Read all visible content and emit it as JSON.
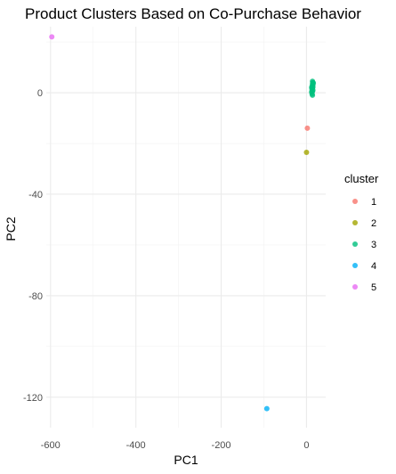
{
  "chart_data": {
    "type": "scatter",
    "title": "Product Clusters Based on Co-Purchase Behavior",
    "xlabel": "PC1",
    "ylabel": "PC2",
    "xlim": [
      -610,
      45
    ],
    "ylim": [
      -132,
      26
    ],
    "x_ticks": [
      -600,
      -400,
      -200,
      0
    ],
    "y_ticks": [
      0,
      -40,
      -80,
      -120
    ],
    "grid": true,
    "legend": {
      "title": "cluster",
      "position": "right"
    },
    "series": [
      {
        "name": "1",
        "color": "#F8766D",
        "points": [
          [
            2,
            -14
          ]
        ]
      },
      {
        "name": "2",
        "color": "#A3A500",
        "points": [
          [
            0,
            -23.5
          ]
        ]
      },
      {
        "name": "3",
        "color": "#00BF7D",
        "points": [
          [
            14,
            4.5
          ],
          [
            15,
            4
          ],
          [
            14,
            3.5
          ],
          [
            15,
            3
          ],
          [
            13,
            2.5
          ],
          [
            15,
            2.2
          ],
          [
            14,
            1.8
          ],
          [
            13,
            1.2
          ],
          [
            15,
            1
          ],
          [
            14,
            0.5
          ],
          [
            12,
            0.3
          ],
          [
            13,
            -0.5
          ],
          [
            14,
            -1
          ],
          [
            12,
            2
          ],
          [
            16,
            3.8
          ]
        ]
      },
      {
        "name": "4",
        "color": "#00B0F6",
        "points": [
          [
            -93,
            -124.5
          ]
        ]
      },
      {
        "name": "5",
        "color": "#E76BF3",
        "points": [
          [
            -597,
            22
          ]
        ]
      }
    ]
  }
}
